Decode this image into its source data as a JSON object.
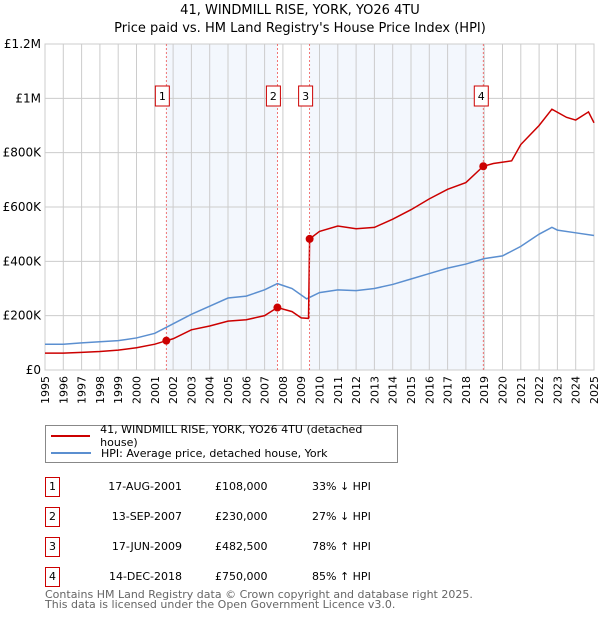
{
  "chart_data": {
    "type": "line",
    "title": "41, WINDMILL RISE, YORK, YO26 4TU",
    "subtitle": "Price paid vs. HM Land Registry's House Price Index (HPI)",
    "xlim": [
      1995,
      2025
    ],
    "ylim": [
      0,
      1200000
    ],
    "x_ticks": [
      "1995",
      "1996",
      "1997",
      "1998",
      "1999",
      "2000",
      "2001",
      "2002",
      "2003",
      "2004",
      "2005",
      "2006",
      "2007",
      "2008",
      "2009",
      "2010",
      "2011",
      "2012",
      "2013",
      "2014",
      "2015",
      "2016",
      "2017",
      "2018",
      "2019",
      "2020",
      "2021",
      "2022",
      "2023",
      "2024",
      "2025"
    ],
    "y_ticks": [
      {
        "v": 0,
        "label": "£0"
      },
      {
        "v": 200000,
        "label": "£200K"
      },
      {
        "v": 400000,
        "label": "£400K"
      },
      {
        "v": 600000,
        "label": "£600K"
      },
      {
        "v": 800000,
        "label": "£800K"
      },
      {
        "v": 1000000,
        "label": "£1M"
      },
      {
        "v": 1200000,
        "label": "£1.2M"
      }
    ],
    "grid": true,
    "series": [
      {
        "name": "41, WINDMILL RISE, YORK, YO26 4TU (detached house)",
        "color": "#cc0000",
        "points": [
          [
            1995,
            62000
          ],
          [
            1996,
            62000
          ],
          [
            1997,
            65000
          ],
          [
            1998,
            68000
          ],
          [
            1999,
            73000
          ],
          [
            2000,
            82000
          ],
          [
            2001,
            95000
          ],
          [
            2001.63,
            108000
          ],
          [
            2002,
            115000
          ],
          [
            2003,
            148000
          ],
          [
            2004,
            162000
          ],
          [
            2005,
            180000
          ],
          [
            2006,
            185000
          ],
          [
            2007,
            200000
          ],
          [
            2007.7,
            230000
          ],
          [
            2008.5,
            215000
          ],
          [
            2009,
            192000
          ],
          [
            2009.4,
            190000
          ],
          [
            2009.46,
            482500
          ],
          [
            2010,
            510000
          ],
          [
            2011,
            530000
          ],
          [
            2012,
            520000
          ],
          [
            2013,
            525000
          ],
          [
            2014,
            555000
          ],
          [
            2015,
            590000
          ],
          [
            2016,
            630000
          ],
          [
            2017,
            665000
          ],
          [
            2018,
            690000
          ],
          [
            2018.95,
            750000
          ],
          [
            2019.5,
            760000
          ],
          [
            2020.5,
            770000
          ],
          [
            2021,
            830000
          ],
          [
            2022,
            900000
          ],
          [
            2022.7,
            960000
          ],
          [
            2023.5,
            930000
          ],
          [
            2024,
            920000
          ],
          [
            2024.7,
            950000
          ],
          [
            2025,
            910000
          ]
        ]
      },
      {
        "name": "HPI: Average price, detached house, York",
        "color": "#5b8fd0",
        "points": [
          [
            1995,
            95000
          ],
          [
            1996,
            95000
          ],
          [
            1997,
            100000
          ],
          [
            1998,
            104000
          ],
          [
            1999,
            108000
          ],
          [
            2000,
            118000
          ],
          [
            2001,
            135000
          ],
          [
            2002,
            170000
          ],
          [
            2003,
            205000
          ],
          [
            2004,
            235000
          ],
          [
            2005,
            265000
          ],
          [
            2006,
            272000
          ],
          [
            2007,
            295000
          ],
          [
            2007.7,
            318000
          ],
          [
            2008.5,
            300000
          ],
          [
            2009.3,
            262000
          ],
          [
            2010,
            285000
          ],
          [
            2011,
            295000
          ],
          [
            2012,
            292000
          ],
          [
            2013,
            300000
          ],
          [
            2014,
            315000
          ],
          [
            2015,
            335000
          ],
          [
            2016,
            355000
          ],
          [
            2017,
            375000
          ],
          [
            2018,
            390000
          ],
          [
            2019,
            410000
          ],
          [
            2020,
            420000
          ],
          [
            2021,
            455000
          ],
          [
            2022,
            500000
          ],
          [
            2022.7,
            525000
          ],
          [
            2023,
            515000
          ],
          [
            2024,
            505000
          ],
          [
            2025,
            495000
          ]
        ]
      }
    ],
    "sales": [
      {
        "n": "1",
        "x": 2001.63,
        "price": 108000,
        "date": "17-AUG-2001",
        "price_label": "£108,000",
        "hpi": "33% ↓ HPI"
      },
      {
        "n": "2",
        "x": 2007.7,
        "price": 230000,
        "date": "13-SEP-2007",
        "price_label": "£230,000",
        "hpi": "27% ↓ HPI"
      },
      {
        "n": "3",
        "x": 2009.46,
        "price": 482500,
        "date": "17-JUN-2009",
        "price_label": "£482,500",
        "hpi": "78% ↑ HPI"
      },
      {
        "n": "4",
        "x": 2018.95,
        "price": 750000,
        "date": "14-DEC-2018",
        "price_label": "£750,000",
        "hpi": "85% ↑ HPI"
      }
    ],
    "legend_position": "below"
  },
  "footer": {
    "line1": "Contains HM Land Registry data © Crown copyright and database right 2025.",
    "line2": "This data is licensed under the Open Government Licence v3.0."
  }
}
